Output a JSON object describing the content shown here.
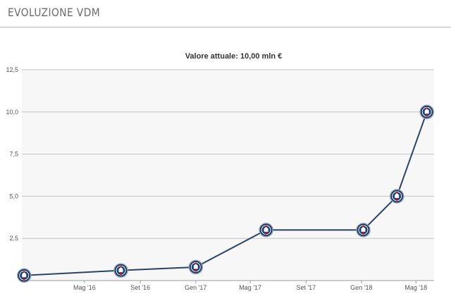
{
  "header": {
    "title": "EVOLUZIONE VDM"
  },
  "colors": {
    "line": "#2a4466",
    "plot_background": "#f7f7f7",
    "grid": "#c4c4c4",
    "marker_fill": "#1e3f73",
    "marker_ring": "#8aa2bf",
    "marker_accent": "#c8102e"
  },
  "chart_data": {
    "type": "line",
    "title": "Valore attuale: 10,00 mln €",
    "xlabel": "",
    "ylabel": "",
    "ylim": [
      0,
      12.5
    ],
    "y_ticks": [
      {
        "value": 2.5,
        "label": "2,5"
      },
      {
        "value": 5,
        "label": "5,0"
      },
      {
        "value": 7.5,
        "label": "7,5"
      },
      {
        "value": 10,
        "label": "10,0"
      },
      {
        "value": 12.5,
        "label": "12,5"
      }
    ],
    "x_range": [
      "2015-12-15",
      "2018-06-10"
    ],
    "x_ticks": [
      {
        "date": "2016-05-01",
        "label": "Mag '16"
      },
      {
        "date": "2016-09-01",
        "label": "Set '16"
      },
      {
        "date": "2017-01-01",
        "label": "Gen '17"
      },
      {
        "date": "2017-05-01",
        "label": "Mag '17"
      },
      {
        "date": "2017-09-01",
        "label": "Set '17"
      },
      {
        "date": "2018-01-01",
        "label": "Gen '18"
      },
      {
        "date": "2018-05-01",
        "label": "Mag '18"
      }
    ],
    "grid": true,
    "marker": "club-crest-icon",
    "series": [
      {
        "points": [
          {
            "x": "2015-12-20",
            "y": 0.3
          },
          {
            "x": "2016-07-20",
            "y": 0.6
          },
          {
            "x": "2017-01-01",
            "y": 0.8
          },
          {
            "x": "2017-06-05",
            "y": 3.0
          },
          {
            "x": "2018-01-05",
            "y": 3.0
          },
          {
            "x": "2018-03-20",
            "y": 5.0
          },
          {
            "x": "2018-05-25",
            "y": 10.0
          }
        ]
      }
    ]
  }
}
